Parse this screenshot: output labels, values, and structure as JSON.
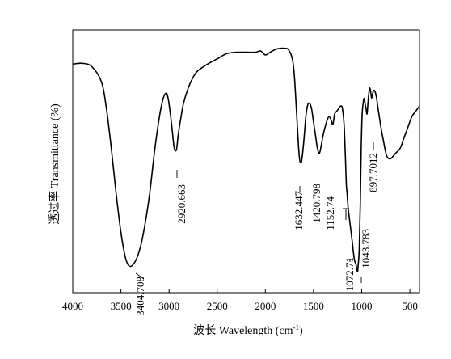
{
  "chart_data": {
    "type": "line",
    "title": "",
    "xlabel_prefix": "波长 Wavelength (cm",
    "xlabel_sup": "-1",
    "xlabel_suffix": ")",
    "ylabel": "透过率 Transmittance (%)",
    "xlim": [
      4000,
      400
    ],
    "ylim": [
      0,
      100
    ],
    "x_ticks": [
      "4000",
      "3500",
      "3000",
      "2500",
      "2000",
      "1500",
      "1000",
      "500"
    ],
    "x_tick_values": [
      4000,
      3500,
      3000,
      2500,
      2000,
      1500,
      1000,
      500
    ],
    "y_ticks_shown": false,
    "grid": false,
    "series": [
      {
        "x": [
          4000,
          3900,
          3800,
          3700,
          3650,
          3600,
          3550,
          3500,
          3450,
          3404,
          3350,
          3300,
          3250,
          3200,
          3150,
          3100,
          3060,
          3030,
          3010,
          2990,
          2970,
          2950,
          2935,
          2920,
          2905,
          2880,
          2850,
          2800,
          2750,
          2700,
          2600,
          2500,
          2400,
          2300,
          2200,
          2100,
          2050,
          2000,
          1950,
          1900,
          1850,
          1800,
          1760,
          1720,
          1700,
          1680,
          1660,
          1645,
          1632,
          1620,
          1600,
          1580,
          1560,
          1540,
          1520,
          1500,
          1480,
          1460,
          1440,
          1420,
          1400,
          1380,
          1360,
          1340,
          1320,
          1300,
          1280,
          1260,
          1240,
          1220,
          1200,
          1180,
          1160,
          1152,
          1140,
          1120,
          1100,
          1085,
          1072,
          1060,
          1050,
          1043,
          1035,
          1025,
          1015,
          1005,
          995,
          985,
          975,
          965,
          955,
          945,
          935,
          925,
          915,
          905,
          897,
          885,
          870,
          850,
          830,
          800,
          770,
          740,
          700,
          650,
          600,
          560,
          520,
          480,
          440,
          400
        ],
        "y": [
          87,
          87.3,
          86,
          80,
          70,
          55,
          38,
          23,
          13,
          10,
          12,
          17,
          26,
          38,
          54,
          67,
          74,
          76,
          74,
          69,
          63,
          56,
          54,
          55,
          60,
          66,
          72,
          78,
          82,
          84.5,
          87,
          89,
          91,
          91.5,
          91.5,
          91.5,
          92,
          90.5,
          91.5,
          92.5,
          93,
          93,
          92.5,
          89,
          83,
          71,
          58,
          51,
          49.5,
          51,
          58,
          67,
          71.5,
          72,
          70,
          65,
          60,
          55,
          53,
          56,
          60,
          63,
          65.5,
          67,
          66,
          64,
          68,
          69,
          70,
          71,
          70,
          62,
          42,
          38,
          32,
          26,
          20,
          15,
          12,
          11,
          9,
          8,
          11,
          17,
          33,
          55,
          68,
          72,
          74,
          72,
          70,
          68,
          72,
          76,
          78,
          76,
          74,
          76,
          77,
          75,
          70,
          63,
          57,
          52,
          51,
          53,
          55,
          59,
          63,
          67,
          69,
          71
        ]
      }
    ],
    "annotations": [
      {
        "label": "3404.708",
        "x": 3404.708
      },
      {
        "label": "2920.663",
        "x": 2920.663
      },
      {
        "label": "1632.447",
        "x": 1632.447
      },
      {
        "label": "1420.798",
        "x": 1420.798
      },
      {
        "label": "1152.74",
        "x": 1152.74
      },
      {
        "label": "1072.71",
        "x": 1072.71
      },
      {
        "label": "1043.783",
        "x": 1043.783
      },
      {
        "label": "897.7012",
        "x": 897.7012
      }
    ]
  }
}
